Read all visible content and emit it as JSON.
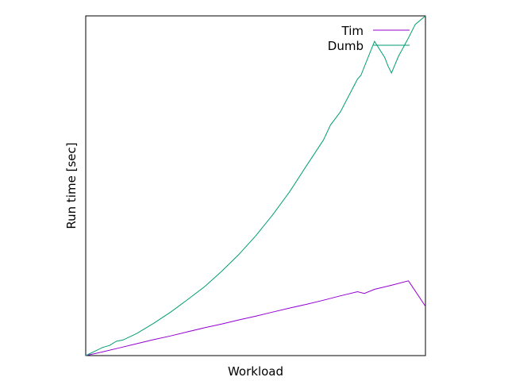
{
  "chart_data": {
    "type": "line",
    "title": "",
    "xlabel": "Workload",
    "ylabel": "Run time [sec]",
    "xlim": [
      0,
      100
    ],
    "ylim": [
      0,
      100
    ],
    "x_ticks_shown": false,
    "y_ticks_shown": false,
    "grid": false,
    "legend_position": "top-right",
    "series": [
      {
        "name": "Tim",
        "color": "#9400d3",
        "x": [
          0,
          5,
          10,
          15,
          20,
          25,
          30,
          35,
          40,
          45,
          50,
          55,
          60,
          65,
          70,
          75,
          80,
          82,
          85,
          90,
          95,
          100
        ],
        "y": [
          0,
          1.1,
          2.3,
          3.5,
          4.7,
          5.8,
          7.0,
          8.2,
          9.3,
          10.5,
          11.6,
          12.8,
          14.0,
          15.1,
          16.3,
          17.6,
          18.8,
          18.3,
          19.5,
          20.7,
          22.0,
          14.5
        ]
      },
      {
        "name": "Dumb",
        "color": "#009e73",
        "x": [
          0,
          5,
          7,
          9,
          11,
          15,
          20,
          25,
          30,
          35,
          40,
          45,
          50,
          55,
          60,
          65,
          70,
          72,
          75,
          80,
          81,
          85,
          88,
          89,
          90,
          92,
          95,
          97,
          100
        ],
        "y": [
          0,
          2.4,
          3.0,
          4.2,
          4.6,
          6.5,
          9.5,
          12.8,
          16.5,
          20.3,
          24.8,
          29.7,
          35.2,
          41.4,
          48.2,
          55.9,
          63.5,
          67.8,
          71.8,
          81.4,
          82.5,
          92.5,
          87.8,
          85.2,
          83.2,
          88.0,
          93.5,
          97.5,
          100
        ]
      }
    ]
  }
}
